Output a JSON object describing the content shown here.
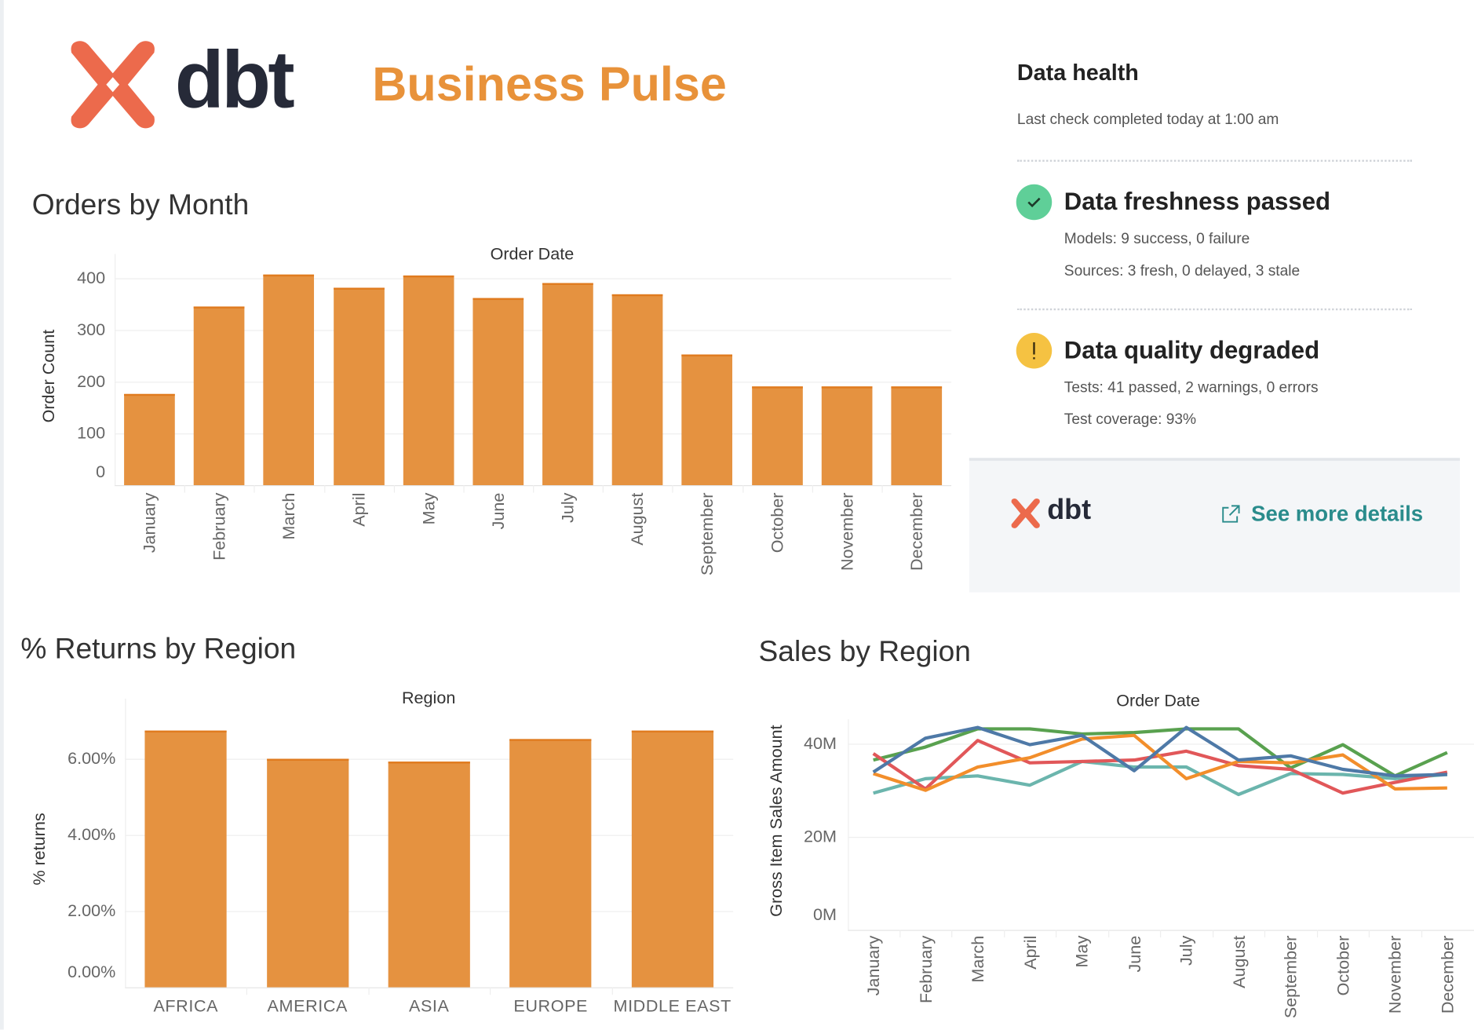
{
  "header": {
    "logo_text": "dbt",
    "title": "Business Pulse",
    "brand_color": "#ec6a4c",
    "title_color": "#e8923a"
  },
  "data_health": {
    "title": "Data health",
    "last_check": "Last check completed today at 1:00 am",
    "freshness": {
      "icon": "check-icon",
      "status_color": "#5fcf98",
      "title": "Data freshness passed",
      "models": "Models: 9 success, 0 failure",
      "sources": "Sources: 3 fresh, 0 delayed, 3 stale"
    },
    "quality": {
      "icon": "exclamation-icon",
      "status_color": "#f5c242",
      "title": "Data quality degraded",
      "tests": "Tests: 41 passed, 2 warnings, 0 errors",
      "coverage": "Test coverage: 93%"
    },
    "footer": {
      "logo_text": "dbt",
      "link_icon": "external-link-icon",
      "link_label": "See more details",
      "link_color": "#2a8c8c"
    }
  },
  "chart_data": [
    {
      "id": "orders",
      "type": "bar",
      "title": "Orders by Month",
      "xlabel": "Order Date",
      "ylabel": "Order Count",
      "ylim": [
        0,
        420
      ],
      "yticks": [
        "0",
        "100",
        "200",
        "300",
        "400"
      ],
      "ytick_values": [
        0,
        100,
        200,
        300,
        400
      ],
      "grid": true,
      "color": "#e59240",
      "categories": [
        "January",
        "February",
        "March",
        "April",
        "May",
        "June",
        "July",
        "August",
        "September",
        "October",
        "November",
        "December"
      ],
      "values": [
        176,
        346,
        407,
        381,
        405,
        361,
        391,
        370,
        252,
        191,
        191,
        191
      ]
    },
    {
      "id": "returns",
      "type": "bar",
      "title": "% Returns by Region",
      "xlabel": "Region",
      "ylabel": "% returns",
      "ylim": [
        0,
        7.2
      ],
      "yticks": [
        "0.00%",
        "2.00%",
        "4.00%",
        "6.00%"
      ],
      "ytick_values": [
        0,
        2,
        4,
        6
      ],
      "grid": true,
      "color": "#e59240",
      "categories": [
        "AFRICA",
        "AMERICA",
        "ASIA",
        "EUROPE",
        "MIDDLE EAST"
      ],
      "values": [
        6.74,
        5.99,
        5.93,
        6.5,
        6.74
      ]
    },
    {
      "id": "sales",
      "type": "line",
      "title": "Sales by Region",
      "xlabel": "Order Date",
      "ylabel": "Gross Item Sales Amount",
      "ylim": [
        0,
        45
      ],
      "yticks": [
        "0M",
        "20M",
        "40M"
      ],
      "ytick_values": [
        0,
        20,
        40
      ],
      "grid": true,
      "categories": [
        "January",
        "February",
        "March",
        "April",
        "May",
        "June",
        "July",
        "August",
        "September",
        "October",
        "November",
        "December"
      ],
      "series": [
        {
          "color": "#6bb5ad",
          "values": [
            29.4,
            32.5,
            33.1,
            31.1,
            36.2,
            35.0,
            35.0,
            29.1,
            33.6,
            33.4,
            32.5,
            33.4
          ]
        },
        {
          "color": "#59a14f",
          "values": [
            36.5,
            39.3,
            43.2,
            43.2,
            42.1,
            42.4,
            43.2,
            43.2,
            34.8,
            39.8,
            33.1,
            38.1
          ]
        },
        {
          "color": "#e15759",
          "values": [
            37.9,
            30.3,
            40.7,
            35.9,
            36.2,
            36.5,
            38.4,
            35.3,
            34.5,
            29.4,
            31.7,
            33.9
          ]
        },
        {
          "color": "#f28e2b",
          "values": [
            33.6,
            30.0,
            35.0,
            37.0,
            41.0,
            41.8,
            32.5,
            36.2,
            35.9,
            37.6,
            30.3,
            30.5
          ]
        },
        {
          "color": "#4e79a7",
          "values": [
            33.9,
            41.2,
            43.5,
            39.8,
            41.8,
            34.2,
            43.5,
            36.5,
            37.4,
            34.5,
            33.1,
            33.4
          ]
        }
      ]
    }
  ]
}
